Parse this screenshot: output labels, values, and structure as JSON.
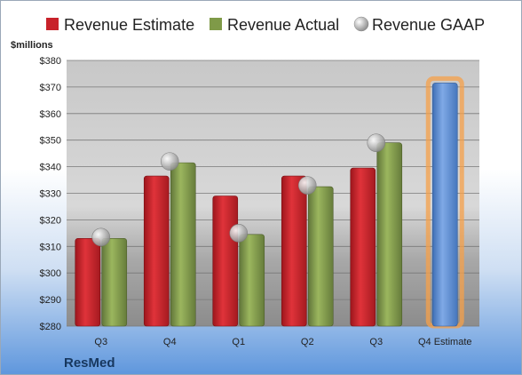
{
  "chart_data": {
    "type": "bar",
    "unit_label": "$millions",
    "brand": "ResMed",
    "categories": [
      "Q3",
      "Q4",
      "Q1",
      "Q2",
      "Q3",
      "Q4 Estimate"
    ],
    "ylim": [
      280,
      380
    ],
    "yticks": [
      "$280",
      "$290",
      "$300",
      "$310",
      "$320",
      "$330",
      "$340",
      "$350",
      "$360",
      "$370",
      "$380"
    ],
    "ytick_values": [
      280,
      290,
      300,
      310,
      320,
      330,
      340,
      350,
      360,
      370,
      380
    ],
    "grid": true,
    "legend_position": "top",
    "series": [
      {
        "name": "Revenue Estimate",
        "type": "bar",
        "color": "#c8222a",
        "values": [
          313,
          336.5,
          329,
          336.5,
          339.5,
          null
        ]
      },
      {
        "name": "Revenue Actual",
        "type": "bar",
        "color": "#7f9a48",
        "values": [
          313,
          341.5,
          314.5,
          332.5,
          349,
          null
        ]
      },
      {
        "name": "Revenue GAAP",
        "type": "marker",
        "color": "#b0b0b0",
        "values": [
          313.5,
          342,
          315,
          333,
          349,
          null
        ]
      },
      {
        "name": "Q4 Estimate",
        "type": "bar",
        "color": "#5b8fd6",
        "highlight": "#f5a04a",
        "values": [
          null,
          null,
          null,
          null,
          null,
          371.5
        ]
      }
    ]
  }
}
